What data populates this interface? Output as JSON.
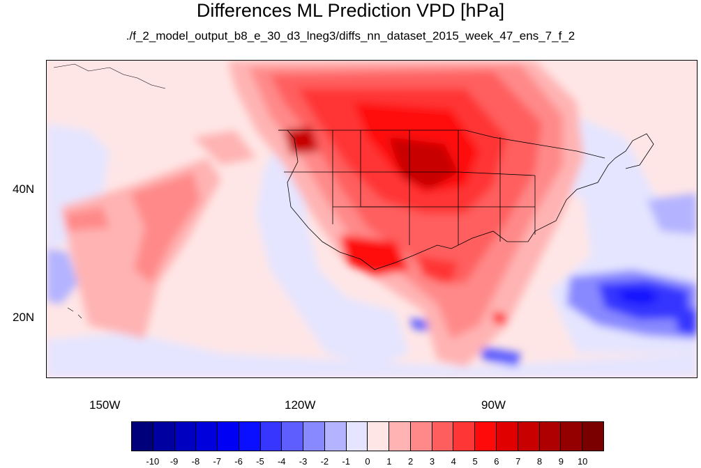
{
  "title": "Differences ML Prediction VPD [hPa]",
  "subtitle": "./f_2_model_output_b8_e_30_d3_lneg3/diffs_nn_dataset_2015_week_47_ens_7_f_2",
  "map": {
    "projection": "cylindrical-equidistant",
    "lon_range": [
      -160,
      -60
    ],
    "lat_range": [
      10,
      59
    ],
    "lon_ticks": [
      "150W",
      "120W",
      "90W"
    ],
    "lat_ticks": [
      "40N",
      "20N"
    ],
    "features": [
      "coastlines",
      "us-state-borders",
      "country-borders"
    ],
    "field": "VPD difference (hPa), filled contours"
  },
  "colorbar": {
    "labels": [
      "-10",
      "-9",
      "-8",
      "-7",
      "-6",
      "-5",
      "-4",
      "-3",
      "-2",
      "-1",
      "0",
      "1",
      "2",
      "3",
      "4",
      "5",
      "6",
      "7",
      "8",
      "9",
      "10"
    ],
    "colors": [
      "#00007a",
      "#0000a0",
      "#0000c0",
      "#0000dd",
      "#0000f5",
      "#0a10ff",
      "#3636ff",
      "#5e5eff",
      "#8989ff",
      "#b3b3ff",
      "#e5e5ff",
      "#ffe6e6",
      "#ffb3b3",
      "#ff8989",
      "#ff5e5e",
      "#ff3636",
      "#ff0a0a",
      "#e00000",
      "#c80000",
      "#ae0000",
      "#940000",
      "#7a0000"
    ]
  }
}
